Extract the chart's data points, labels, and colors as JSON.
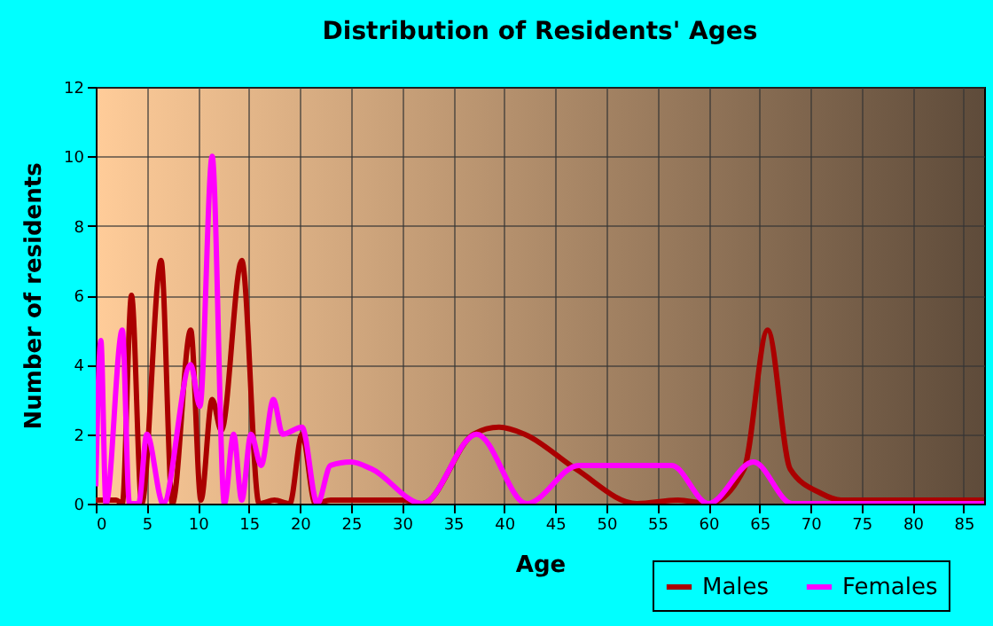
{
  "chart_data": {
    "type": "line",
    "title": "Distribution of Residents' Ages",
    "xlabel": "Age",
    "ylabel": "Number of residents",
    "xlim": [
      0,
      87
    ],
    "xticks": [
      0,
      5,
      10,
      15,
      20,
      25,
      30,
      35,
      40,
      45,
      50,
      55,
      60,
      65,
      70,
      75,
      80,
      85
    ],
    "ylim": [
      0,
      12
    ],
    "yticks": [
      0,
      2,
      4,
      6,
      8,
      10,
      12
    ],
    "grid": true,
    "legend": "bottom right",
    "series": [
      {
        "name": "Males",
        "color": "#aa0000",
        "x": [
          0,
          2,
          2.6,
          3.5,
          4.5,
          6.4,
          7.5,
          9.3,
          10.3,
          11.4,
          12.3,
          14.3,
          16,
          17.5,
          19,
          20.2,
          21.5,
          23,
          30,
          32,
          37,
          39.5,
          42,
          47,
          53,
          57,
          60,
          63.5,
          65.8,
          68,
          71,
          73,
          80,
          87
        ],
        "values": [
          0.1,
          0.1,
          0,
          6,
          0,
          7,
          0,
          5,
          0.1,
          3,
          2.1,
          7,
          0,
          0.1,
          0,
          2,
          0,
          0.1,
          0.1,
          0,
          2,
          2.2,
          2,
          1,
          0,
          0.1,
          0,
          1,
          5,
          1,
          0.3,
          0.1,
          0.1,
          0.1
        ]
      },
      {
        "name": "Females",
        "color": "#ff00ff",
        "x": [
          0,
          0.5,
          1,
          2.6,
          3.3,
          4.2,
          5,
          6.6,
          9.3,
          10.2,
          11.4,
          12.6,
          13.5,
          14.3,
          15.2,
          16.2,
          17.4,
          18.3,
          20.2,
          21.7,
          23,
          25,
          27,
          32,
          37.3,
          42.2,
          47.3,
          53,
          56.4,
          60,
          64.4,
          68.2,
          75,
          87
        ],
        "values": [
          0.5,
          4.7,
          0,
          5,
          0,
          0,
          2,
          0,
          4,
          2.8,
          10,
          0,
          2,
          0.1,
          2,
          1.1,
          3,
          2,
          2.2,
          0,
          1.1,
          1.2,
          1,
          0,
          2,
          0,
          1.1,
          1.1,
          1.1,
          0,
          1.2,
          0,
          0,
          0
        ]
      }
    ]
  }
}
